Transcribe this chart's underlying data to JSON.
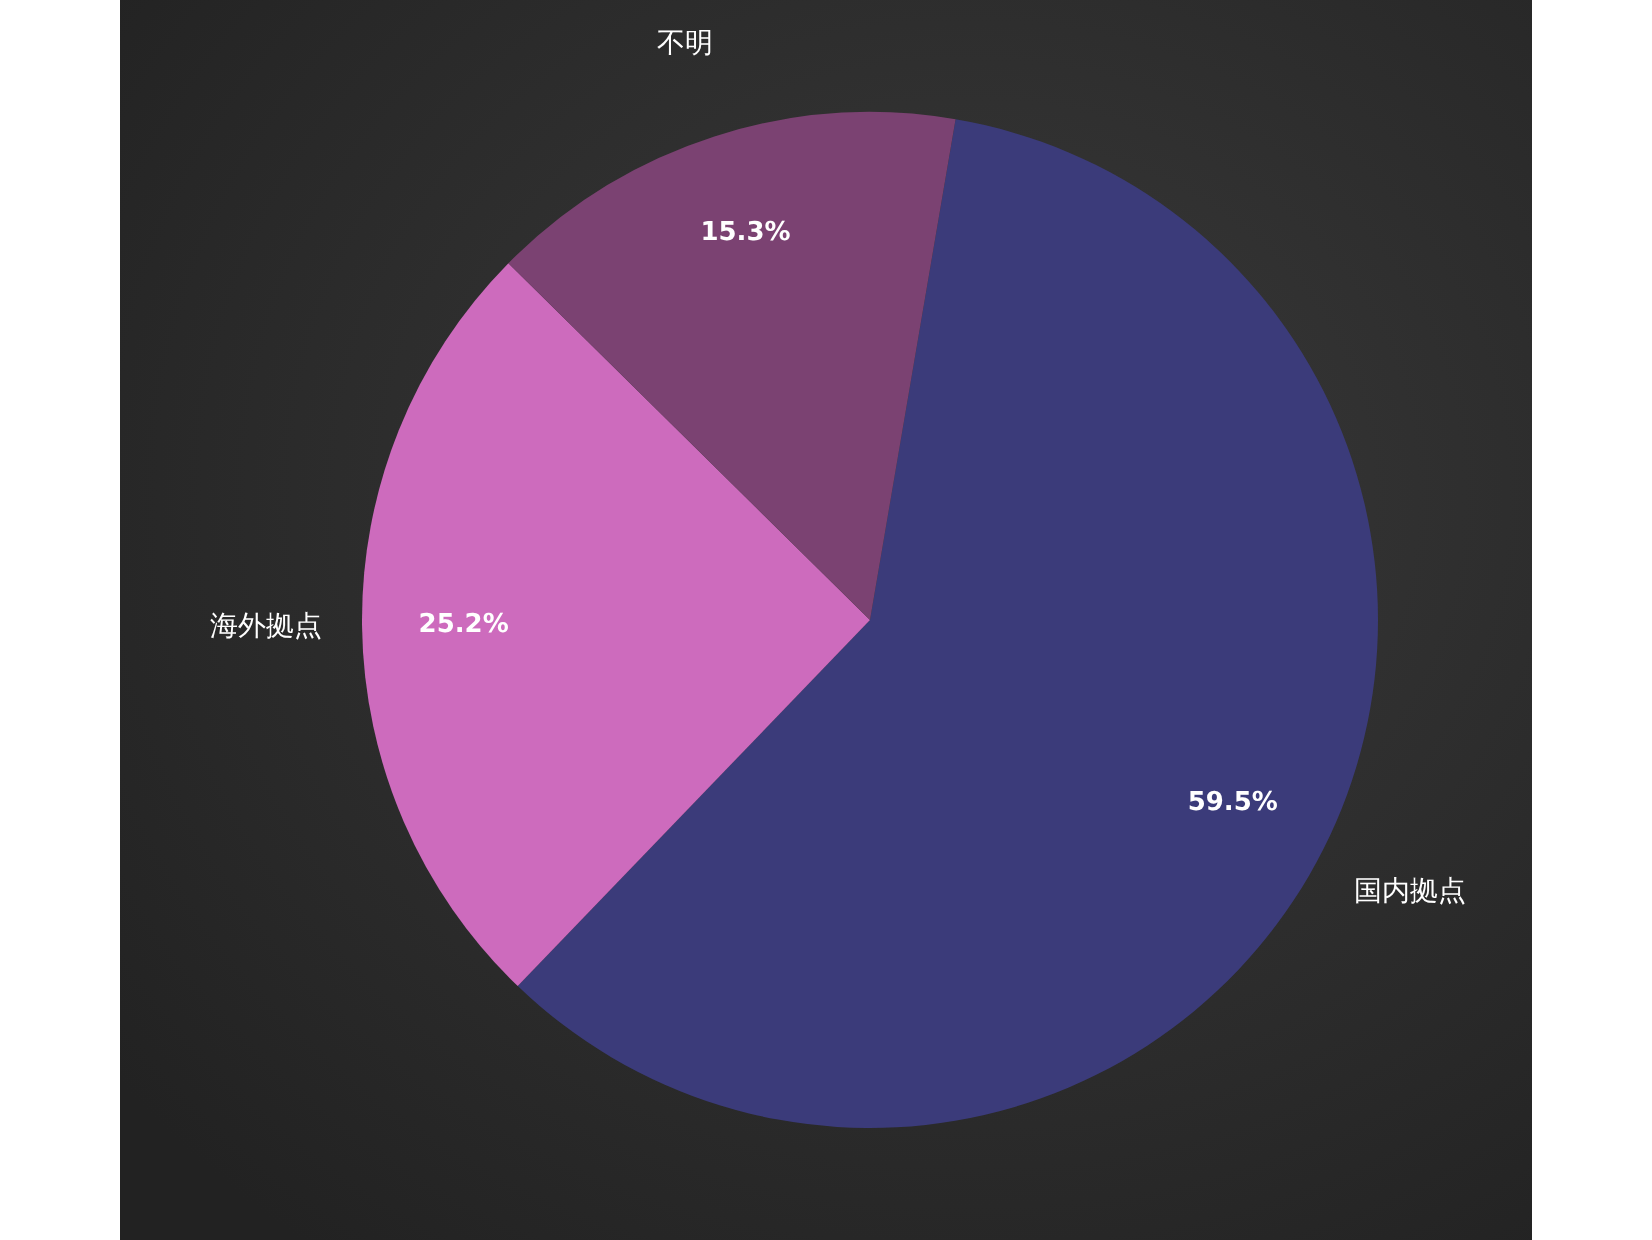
{
  "chart_data": {
    "type": "pie",
    "categories": [
      "国内拠点",
      "海外拠点",
      "不明"
    ],
    "values": [
      59.5,
      25.2,
      15.3
    ],
    "value_labels": [
      "59.5%",
      "25.2%",
      "15.3%"
    ],
    "colors": [
      "#3b3b7a",
      "#cd6bbd",
      "#7b4272"
    ]
  }
}
